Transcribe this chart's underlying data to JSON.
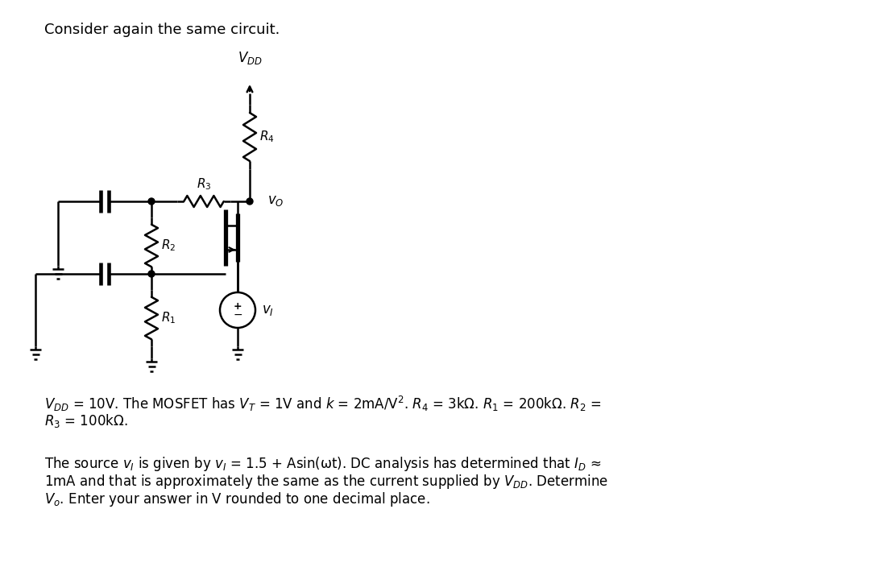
{
  "title": "Consider again the same circuit.",
  "background_color": "#ffffff",
  "text_color": "#000000",
  "line_color": "#000000",
  "line_width": 1.8,
  "fig_width": 10.8,
  "fig_height": 6.99,
  "dpi": 100,
  "param_text_line1": "$V_{DD}$ = 10V. The MOSFET has $V_T$ = 1V and $k$ = 2mA/V$^2$. $R_4$ = 3kΩ. $R_1$ = 200kΩ. $R_2$ =",
  "param_text_line2": "$R_3$ = 100kΩ.",
  "source_text_line1": "The source $v_I$ is given by $v_I$ = 1.5 + Asin(ωt). DC analysis has determined that $I_D$ ≈",
  "source_text_line2": "1mA and that is approximately the same as the current supplied by $V_{DD}$. Determine",
  "source_text_line3": "$V_o$. Enter your answer in V rounded to one decimal place."
}
